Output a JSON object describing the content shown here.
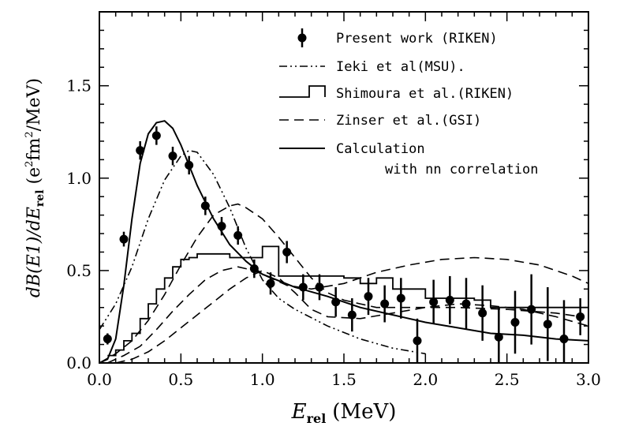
{
  "chart_data": {
    "type": "scatter",
    "xlim": [
      0.0,
      3.0
    ],
    "ylim": [
      0.0,
      1.9
    ],
    "grid": false,
    "legend_position": "top-right",
    "x_ticks": [
      0.0,
      0.5,
      1.0,
      1.5,
      2.0,
      2.5,
      3.0
    ],
    "x_tick_labels": [
      "0.0",
      "0.5",
      "1.0",
      "1.5",
      "2.0",
      "2.5",
      "3.0"
    ],
    "y_ticks": [
      0.0,
      0.5,
      1.0,
      1.5
    ],
    "y_tick_labels": [
      "0.0",
      "0.5",
      "1.0",
      "1.5"
    ],
    "xlabel": {
      "main": "E",
      "sub": "rel",
      "unit": "(MeV)"
    },
    "ylabel": {
      "p1": "dB(E1)/dE",
      "sub": "rel",
      "p2": " (e",
      "sup1": "2",
      "p3": "fm",
      "sup2": "2",
      "p4": "/MeV)"
    },
    "series": [
      {
        "name": "Present work (RIKEN)",
        "style": "points",
        "x": [
          0.05,
          0.15,
          0.25,
          0.35,
          0.45,
          0.55,
          0.65,
          0.75,
          0.85,
          0.95,
          1.05,
          1.15,
          1.25,
          1.35,
          1.45,
          1.55,
          1.65,
          1.75,
          1.85,
          1.95,
          2.05,
          2.15,
          2.25,
          2.35,
          2.45,
          2.55,
          2.65,
          2.75,
          2.85,
          2.95
        ],
        "y": [
          0.13,
          0.67,
          1.15,
          1.23,
          1.12,
          1.07,
          0.85,
          0.74,
          0.69,
          0.51,
          0.43,
          0.6,
          0.41,
          0.41,
          0.33,
          0.26,
          0.36,
          0.32,
          0.35,
          0.12,
          0.33,
          0.34,
          0.32,
          0.27,
          0.14,
          0.22,
          0.29,
          0.21,
          0.13,
          0.25
        ],
        "yerr": [
          0.03,
          0.04,
          0.05,
          0.05,
          0.05,
          0.05,
          0.05,
          0.05,
          0.05,
          0.05,
          0.06,
          0.06,
          0.07,
          0.07,
          0.08,
          0.09,
          0.1,
          0.1,
          0.11,
          0.12,
          0.12,
          0.13,
          0.14,
          0.15,
          0.16,
          0.17,
          0.19,
          0.2,
          0.21,
          0.1
        ]
      },
      {
        "name": "Ieki et al(MSU).",
        "style": "dashdotdot",
        "x": [
          0.0,
          0.1,
          0.2,
          0.3,
          0.4,
          0.5,
          0.55,
          0.6,
          0.7,
          0.8,
          0.9,
          1.0,
          1.1,
          1.2,
          1.4,
          1.6,
          1.8,
          2.0
        ],
        "y": [
          0.18,
          0.32,
          0.52,
          0.78,
          0.99,
          1.12,
          1.15,
          1.14,
          1.02,
          0.84,
          0.62,
          0.45,
          0.35,
          0.29,
          0.2,
          0.13,
          0.08,
          0.05
        ]
      },
      {
        "name": "Shimoura et al.(RIKEN)",
        "style": "step",
        "edges": [
          0.05,
          0.1,
          0.15,
          0.2,
          0.25,
          0.3,
          0.35,
          0.4,
          0.45,
          0.5,
          0.55,
          0.6,
          0.7,
          0.8,
          0.9,
          1.0,
          1.1,
          1.2,
          1.3,
          1.4,
          1.5,
          1.6,
          1.7,
          1.8,
          1.9,
          2.0,
          2.1,
          2.2,
          2.3,
          2.4,
          2.5,
          2.6,
          2.7,
          2.8,
          2.9,
          3.0
        ],
        "values": [
          0.04,
          0.07,
          0.12,
          0.16,
          0.24,
          0.32,
          0.4,
          0.46,
          0.52,
          0.56,
          0.57,
          0.59,
          0.59,
          0.57,
          0.57,
          0.63,
          0.47,
          0.47,
          0.47,
          0.47,
          0.46,
          0.43,
          0.46,
          0.4,
          0.4,
          0.35,
          0.35,
          0.35,
          0.34,
          0.3,
          0.3,
          0.3,
          0.3,
          0.3,
          0.3
        ]
      },
      {
        "name": "Zinser et al.(GSI)",
        "style": "dashed",
        "curves": [
          {
            "x": [
              0.0,
              0.1,
              0.2,
              0.3,
              0.4,
              0.5,
              0.6,
              0.7,
              0.8,
              0.85,
              0.9,
              1.0,
              1.1,
              1.2,
              1.3,
              1.4,
              1.5,
              1.6,
              1.7,
              1.8,
              2.0,
              2.2,
              2.5,
              2.8,
              2.95
            ],
            "y": [
              0.0,
              0.05,
              0.12,
              0.23,
              0.37,
              0.53,
              0.68,
              0.8,
              0.85,
              0.86,
              0.84,
              0.78,
              0.68,
              0.57,
              0.46,
              0.38,
              0.34,
              0.32,
              0.3,
              0.3,
              0.3,
              0.3,
              0.29,
              0.27,
              0.25
            ]
          },
          {
            "x": [
              0.05,
              0.15,
              0.25,
              0.35,
              0.45,
              0.55,
              0.65,
              0.75,
              0.85,
              0.95,
              1.05,
              1.15,
              1.3,
              1.5,
              1.7,
              1.9,
              2.1,
              2.3,
              2.5,
              2.7,
              2.9,
              3.0
            ],
            "y": [
              0.0,
              0.04,
              0.09,
              0.18,
              0.28,
              0.37,
              0.45,
              0.5,
              0.52,
              0.5,
              0.46,
              0.42,
              0.4,
              0.43,
              0.49,
              0.53,
              0.56,
              0.57,
              0.56,
              0.53,
              0.47,
              0.43
            ]
          },
          {
            "x": [
              0.1,
              0.2,
              0.3,
              0.4,
              0.5,
              0.6,
              0.7,
              0.8,
              0.9,
              1.0,
              1.1,
              1.2,
              1.3,
              1.4,
              1.6,
              1.8,
              2.0,
              2.2,
              2.4,
              2.6,
              2.8,
              3.0
            ],
            "y": [
              0.0,
              0.02,
              0.06,
              0.12,
              0.19,
              0.26,
              0.33,
              0.4,
              0.46,
              0.5,
              0.46,
              0.38,
              0.29,
              0.25,
              0.24,
              0.27,
              0.3,
              0.32,
              0.31,
              0.29,
              0.25,
              0.2
            ]
          }
        ]
      },
      {
        "name": "Calculation",
        "name_line2": "with nn correlation",
        "style": "solid",
        "x": [
          0.0,
          0.05,
          0.1,
          0.15,
          0.2,
          0.25,
          0.3,
          0.35,
          0.4,
          0.45,
          0.5,
          0.6,
          0.7,
          0.8,
          0.9,
          1.0,
          1.2,
          1.4,
          1.6,
          1.8,
          2.0,
          2.2,
          2.4,
          2.6,
          2.8,
          3.0
        ],
        "y": [
          0.0,
          0.02,
          0.13,
          0.42,
          0.78,
          1.08,
          1.24,
          1.3,
          1.31,
          1.27,
          1.18,
          0.96,
          0.78,
          0.64,
          0.55,
          0.48,
          0.41,
          0.36,
          0.3,
          0.26,
          0.22,
          0.19,
          0.16,
          0.15,
          0.13,
          0.12
        ]
      }
    ]
  }
}
